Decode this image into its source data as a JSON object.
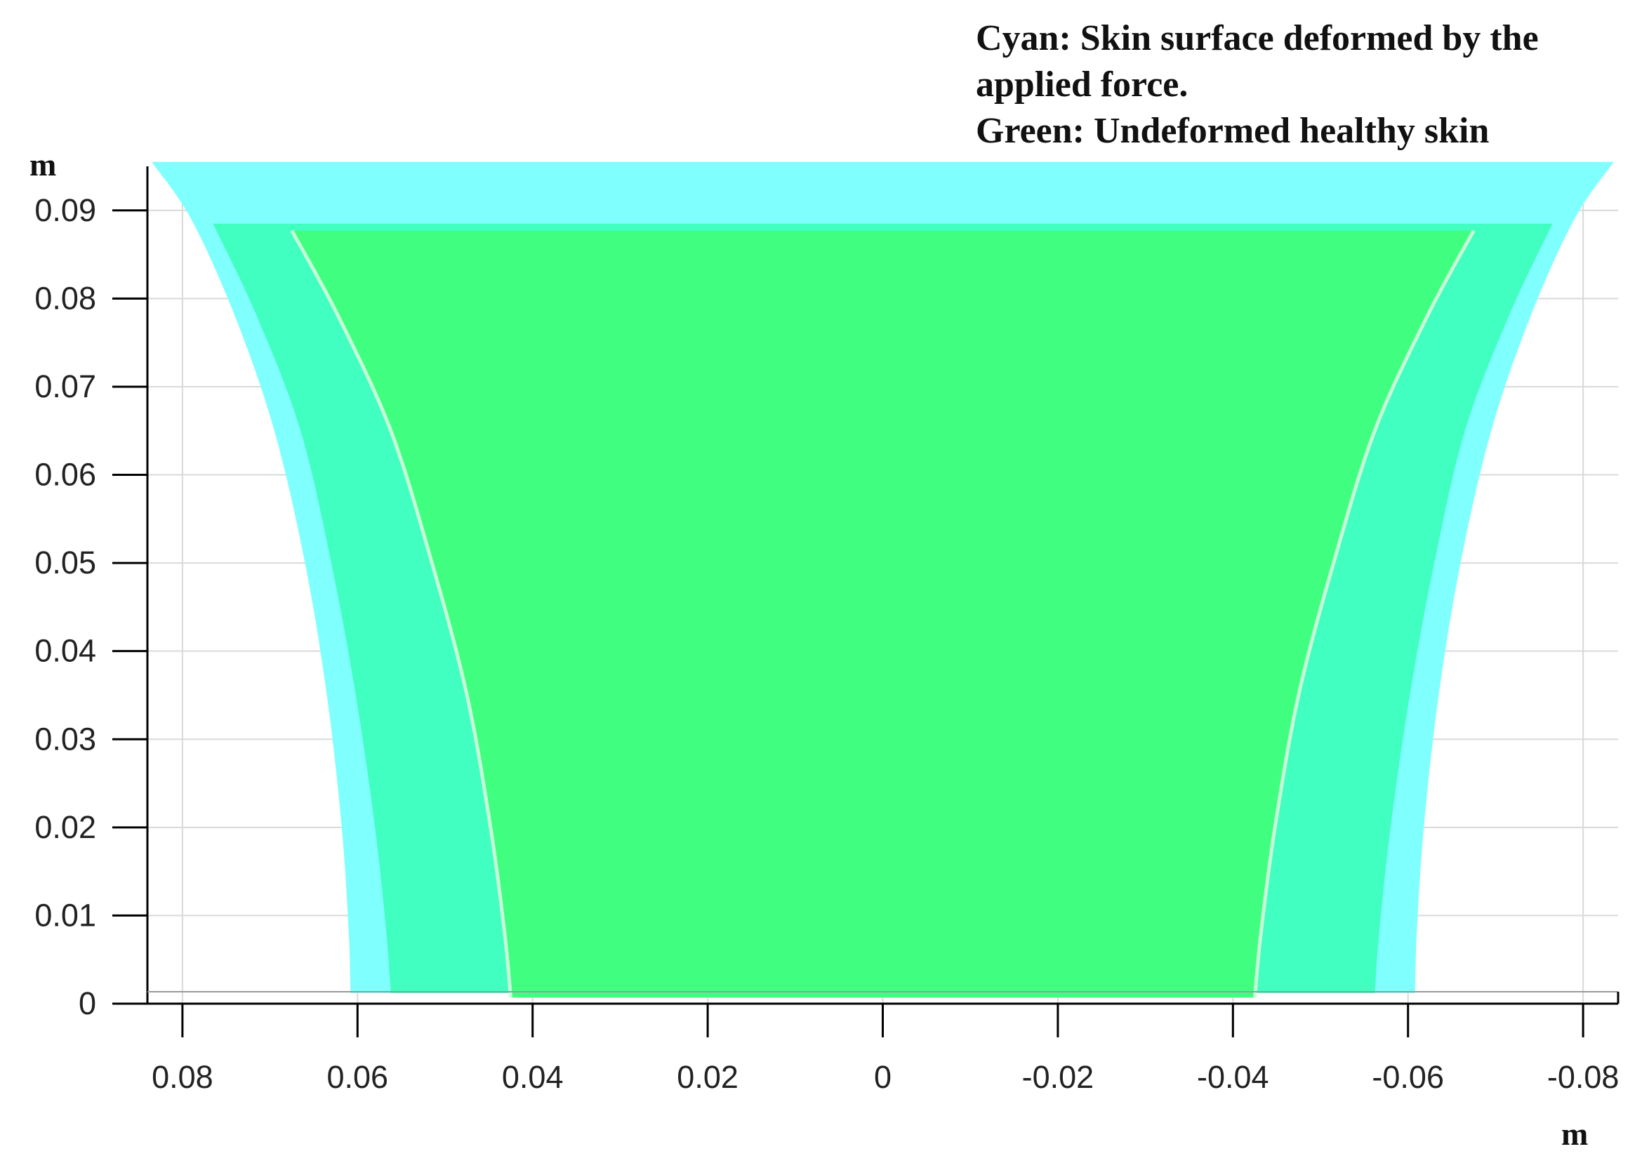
{
  "annotation": {
    "line1": "Cyan: Skin surface deformed by the",
    "line2": "applied force.",
    "line3": "Green: Undeformed healthy skin"
  },
  "chart_data": {
    "type": "area",
    "xlabel": "m",
    "ylabel": "m",
    "xlim": [
      0.084,
      -0.084
    ],
    "ylim": [
      0,
      0.095
    ],
    "x_ticks": [
      0.08,
      0.06,
      0.04,
      0.02,
      0,
      -0.02,
      -0.04,
      -0.06,
      -0.08
    ],
    "x_tick_labels": [
      "0.08",
      "0.06",
      "0.04",
      "0.02",
      "0",
      "-0.02",
      "-0.04",
      "-0.06",
      "-0.08"
    ],
    "y_ticks": [
      0,
      0.01,
      0.02,
      0.03,
      0.04,
      0.05,
      0.06,
      0.07,
      0.08,
      0.09
    ],
    "y_tick_labels": [
      "0",
      "0.01",
      "0.02",
      "0.03",
      "0.04",
      "0.05",
      "0.06",
      "0.07",
      "0.08",
      "0.09"
    ],
    "grid": true,
    "colors": {
      "cyan": "#80FFFF",
      "teal": "#40FFC0",
      "green": "#40FF80",
      "seam": "#C8FFD8",
      "grid": "#D9D9D9",
      "axis": "#000000"
    },
    "regions": [
      {
        "color_key": "cyan",
        "top_y": 0.0955,
        "bottom_y": 0.0012,
        "left_edge": [
          [
            0.0835,
            0.0955
          ],
          [
            0.079,
            0.089
          ],
          [
            0.074,
            0.078
          ],
          [
            0.0695,
            0.065
          ],
          [
            0.066,
            0.05
          ],
          [
            0.0635,
            0.035
          ],
          [
            0.0618,
            0.02
          ],
          [
            0.061,
            0.008
          ],
          [
            0.0608,
            0.0012
          ]
        ],
        "right_edge": [
          [
            -0.0835,
            0.0955
          ],
          [
            -0.079,
            0.089
          ],
          [
            -0.074,
            0.078
          ],
          [
            -0.0695,
            0.065
          ],
          [
            -0.066,
            0.05
          ],
          [
            -0.0635,
            0.035
          ],
          [
            -0.0618,
            0.02
          ],
          [
            -0.061,
            0.008
          ],
          [
            -0.0608,
            0.0012
          ]
        ]
      },
      {
        "color_key": "teal",
        "top_y": 0.0885,
        "bottom_y": 0.0012,
        "left_edge": [
          [
            0.0765,
            0.0885
          ],
          [
            0.0715,
            0.078
          ],
          [
            0.0665,
            0.065
          ],
          [
            0.063,
            0.05
          ],
          [
            0.0602,
            0.035
          ],
          [
            0.058,
            0.02
          ],
          [
            0.0567,
            0.008
          ],
          [
            0.0562,
            0.0012
          ]
        ],
        "right_edge": [
          [
            -0.0765,
            0.0885
          ],
          [
            -0.0715,
            0.078
          ],
          [
            -0.0665,
            0.065
          ],
          [
            -0.063,
            0.05
          ],
          [
            -0.0602,
            0.035
          ],
          [
            -0.058,
            0.02
          ],
          [
            -0.0567,
            0.008
          ],
          [
            -0.0562,
            0.0012
          ]
        ]
      },
      {
        "color_key": "green",
        "top_y": 0.0877,
        "bottom_y": 0.0007,
        "left_edge": [
          [
            0.0675,
            0.0877
          ],
          [
            0.0622,
            0.078
          ],
          [
            0.0562,
            0.065
          ],
          [
            0.0515,
            0.05
          ],
          [
            0.0475,
            0.035
          ],
          [
            0.0448,
            0.02
          ],
          [
            0.0432,
            0.008
          ],
          [
            0.0425,
            0.0007
          ]
        ],
        "right_edge": [
          [
            -0.0675,
            0.0877
          ],
          [
            -0.0622,
            0.078
          ],
          [
            -0.0562,
            0.065
          ],
          [
            -0.0515,
            0.05
          ],
          [
            -0.0475,
            0.035
          ],
          [
            -0.0448,
            0.02
          ],
          [
            -0.0432,
            0.008
          ],
          [
            -0.0425,
            0.0007
          ]
        ]
      }
    ]
  }
}
